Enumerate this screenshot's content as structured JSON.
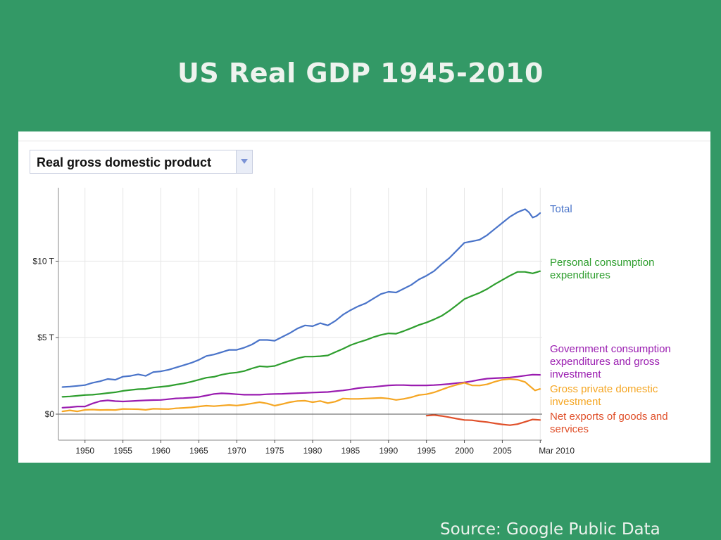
{
  "title": "US Real GDP 1945-2010",
  "source": "Source: Google Public Data",
  "metric_selector": {
    "label": "Real gross domestic product",
    "icon": "chevron-down-icon"
  },
  "chart_data": {
    "type": "line",
    "x_unit": "year",
    "xlim": [
      1946.5,
      2010.25
    ],
    "ylim": [
      -1.7,
      14.8
    ],
    "x_ticks": [
      {
        "value": 1950,
        "label": "1950"
      },
      {
        "value": 1955,
        "label": "1955"
      },
      {
        "value": 1960,
        "label": "1960"
      },
      {
        "value": 1965,
        "label": "1965"
      },
      {
        "value": 1970,
        "label": "1970"
      },
      {
        "value": 1975,
        "label": "1975"
      },
      {
        "value": 1980,
        "label": "1980"
      },
      {
        "value": 1985,
        "label": "1985"
      },
      {
        "value": 1990,
        "label": "1990"
      },
      {
        "value": 1995,
        "label": "1995"
      },
      {
        "value": 2000,
        "label": "2000"
      },
      {
        "value": 2005,
        "label": "2005"
      },
      {
        "value": 2010,
        "label": "Mar 2010"
      }
    ],
    "y_ticks": [
      {
        "value": 0,
        "label": "$0"
      },
      {
        "value": 5,
        "label": "$5 T"
      },
      {
        "value": 10,
        "label": "$10 T"
      }
    ],
    "grid": true,
    "legend": "right (end-of-line labels)",
    "series": [
      {
        "name": "Total",
        "label_lines": [
          "Total"
        ],
        "color": "#4a74c9",
        "points": [
          [
            1947,
            1.77
          ],
          [
            1948,
            1.8
          ],
          [
            1949,
            1.85
          ],
          [
            1950,
            1.9
          ],
          [
            1951,
            2.05
          ],
          [
            1952,
            2.15
          ],
          [
            1953,
            2.3
          ],
          [
            1954,
            2.25
          ],
          [
            1955,
            2.45
          ],
          [
            1956,
            2.5
          ],
          [
            1957,
            2.6
          ],
          [
            1958,
            2.5
          ],
          [
            1959,
            2.75
          ],
          [
            1960,
            2.8
          ],
          [
            1961,
            2.9
          ],
          [
            1962,
            3.05
          ],
          [
            1963,
            3.2
          ],
          [
            1964,
            3.35
          ],
          [
            1965,
            3.55
          ],
          [
            1966,
            3.8
          ],
          [
            1967,
            3.9
          ],
          [
            1968,
            4.05
          ],
          [
            1969,
            4.2
          ],
          [
            1970,
            4.2
          ],
          [
            1971,
            4.35
          ],
          [
            1972,
            4.55
          ],
          [
            1973,
            4.85
          ],
          [
            1974,
            4.85
          ],
          [
            1975,
            4.8
          ],
          [
            1976,
            5.05
          ],
          [
            1977,
            5.3
          ],
          [
            1978,
            5.6
          ],
          [
            1979,
            5.8
          ],
          [
            1980,
            5.75
          ],
          [
            1981,
            5.95
          ],
          [
            1982,
            5.8
          ],
          [
            1983,
            6.1
          ],
          [
            1984,
            6.5
          ],
          [
            1985,
            6.8
          ],
          [
            1986,
            7.05
          ],
          [
            1987,
            7.25
          ],
          [
            1988,
            7.55
          ],
          [
            1989,
            7.85
          ],
          [
            1990,
            8.0
          ],
          [
            1991,
            7.95
          ],
          [
            1992,
            8.2
          ],
          [
            1993,
            8.45
          ],
          [
            1994,
            8.8
          ],
          [
            1995,
            9.05
          ],
          [
            1996,
            9.35
          ],
          [
            1997,
            9.8
          ],
          [
            1998,
            10.2
          ],
          [
            1999,
            10.7
          ],
          [
            2000,
            11.2
          ],
          [
            2001,
            11.3
          ],
          [
            2002,
            11.4
          ],
          [
            2003,
            11.7
          ],
          [
            2004,
            12.1
          ],
          [
            2005,
            12.5
          ],
          [
            2006,
            12.9
          ],
          [
            2007,
            13.2
          ],
          [
            2008,
            13.4
          ],
          [
            2008.5,
            13.2
          ],
          [
            2009,
            12.85
          ],
          [
            2009.5,
            12.95
          ],
          [
            2010,
            13.15
          ]
        ]
      },
      {
        "name": "Personal consumption expenditures",
        "label_lines": [
          "Personal consumption",
          "expenditures"
        ],
        "color": "#2e9e2e",
        "points": [
          [
            1947,
            1.13
          ],
          [
            1948,
            1.16
          ],
          [
            1949,
            1.2
          ],
          [
            1950,
            1.25
          ],
          [
            1951,
            1.27
          ],
          [
            1952,
            1.32
          ],
          [
            1953,
            1.38
          ],
          [
            1954,
            1.43
          ],
          [
            1955,
            1.52
          ],
          [
            1956,
            1.58
          ],
          [
            1957,
            1.63
          ],
          [
            1958,
            1.65
          ],
          [
            1959,
            1.74
          ],
          [
            1960,
            1.79
          ],
          [
            1961,
            1.84
          ],
          [
            1962,
            1.93
          ],
          [
            1963,
            2.01
          ],
          [
            1964,
            2.12
          ],
          [
            1965,
            2.25
          ],
          [
            1966,
            2.38
          ],
          [
            1967,
            2.44
          ],
          [
            1968,
            2.58
          ],
          [
            1969,
            2.67
          ],
          [
            1970,
            2.72
          ],
          [
            1971,
            2.82
          ],
          [
            1972,
            2.99
          ],
          [
            1973,
            3.13
          ],
          [
            1974,
            3.1
          ],
          [
            1975,
            3.15
          ],
          [
            1976,
            3.33
          ],
          [
            1977,
            3.49
          ],
          [
            1978,
            3.65
          ],
          [
            1979,
            3.76
          ],
          [
            1980,
            3.76
          ],
          [
            1981,
            3.79
          ],
          [
            1982,
            3.84
          ],
          [
            1983,
            4.06
          ],
          [
            1984,
            4.27
          ],
          [
            1985,
            4.51
          ],
          [
            1986,
            4.69
          ],
          [
            1987,
            4.84
          ],
          [
            1988,
            5.03
          ],
          [
            1989,
            5.18
          ],
          [
            1990,
            5.28
          ],
          [
            1991,
            5.26
          ],
          [
            1992,
            5.43
          ],
          [
            1993,
            5.62
          ],
          [
            1994,
            5.83
          ],
          [
            1995,
            5.99
          ],
          [
            1996,
            6.19
          ],
          [
            1997,
            6.42
          ],
          [
            1998,
            6.75
          ],
          [
            1999,
            7.13
          ],
          [
            2000,
            7.52
          ],
          [
            2001,
            7.73
          ],
          [
            2002,
            7.93
          ],
          [
            2003,
            8.18
          ],
          [
            2004,
            8.49
          ],
          [
            2005,
            8.77
          ],
          [
            2006,
            9.05
          ],
          [
            2007,
            9.3
          ],
          [
            2008,
            9.3
          ],
          [
            2009,
            9.2
          ],
          [
            2010,
            9.35
          ]
        ]
      },
      {
        "name": "Government consumption expenditures and gross investment",
        "label_lines": [
          "Government consumption",
          "expenditures and gross",
          "investment"
        ],
        "color": "#9a1cb0",
        "points": [
          [
            1947,
            0.42
          ],
          [
            1948,
            0.45
          ],
          [
            1949,
            0.5
          ],
          [
            1950,
            0.5
          ],
          [
            1951,
            0.7
          ],
          [
            1952,
            0.85
          ],
          [
            1953,
            0.9
          ],
          [
            1954,
            0.85
          ],
          [
            1955,
            0.83
          ],
          [
            1956,
            0.85
          ],
          [
            1957,
            0.88
          ],
          [
            1958,
            0.9
          ],
          [
            1959,
            0.92
          ],
          [
            1960,
            0.93
          ],
          [
            1961,
            0.98
          ],
          [
            1962,
            1.03
          ],
          [
            1963,
            1.05
          ],
          [
            1964,
            1.08
          ],
          [
            1965,
            1.12
          ],
          [
            1966,
            1.22
          ],
          [
            1967,
            1.32
          ],
          [
            1968,
            1.36
          ],
          [
            1969,
            1.34
          ],
          [
            1970,
            1.3
          ],
          [
            1971,
            1.27
          ],
          [
            1972,
            1.27
          ],
          [
            1973,
            1.27
          ],
          [
            1974,
            1.3
          ],
          [
            1975,
            1.32
          ],
          [
            1976,
            1.33
          ],
          [
            1977,
            1.35
          ],
          [
            1978,
            1.37
          ],
          [
            1979,
            1.39
          ],
          [
            1980,
            1.41
          ],
          [
            1981,
            1.43
          ],
          [
            1982,
            1.45
          ],
          [
            1983,
            1.5
          ],
          [
            1984,
            1.55
          ],
          [
            1985,
            1.62
          ],
          [
            1986,
            1.7
          ],
          [
            1987,
            1.75
          ],
          [
            1988,
            1.78
          ],
          [
            1989,
            1.83
          ],
          [
            1990,
            1.88
          ],
          [
            1991,
            1.9
          ],
          [
            1992,
            1.9
          ],
          [
            1993,
            1.88
          ],
          [
            1994,
            1.88
          ],
          [
            1995,
            1.88
          ],
          [
            1996,
            1.9
          ],
          [
            1997,
            1.93
          ],
          [
            1998,
            1.97
          ],
          [
            1999,
            2.03
          ],
          [
            2000,
            2.08
          ],
          [
            2001,
            2.15
          ],
          [
            2002,
            2.25
          ],
          [
            2003,
            2.32
          ],
          [
            2004,
            2.35
          ],
          [
            2005,
            2.37
          ],
          [
            2006,
            2.4
          ],
          [
            2007,
            2.45
          ],
          [
            2008,
            2.52
          ],
          [
            2009,
            2.58
          ],
          [
            2010,
            2.57
          ]
        ]
      },
      {
        "name": "Gross private domestic investment",
        "label_lines": [
          "Gross private domestic",
          "investment"
        ],
        "color": "#f5a623",
        "points": [
          [
            1947,
            0.18
          ],
          [
            1948,
            0.25
          ],
          [
            1949,
            0.18
          ],
          [
            1950,
            0.28
          ],
          [
            1951,
            0.3
          ],
          [
            1952,
            0.27
          ],
          [
            1953,
            0.28
          ],
          [
            1954,
            0.27
          ],
          [
            1955,
            0.34
          ],
          [
            1956,
            0.33
          ],
          [
            1957,
            0.32
          ],
          [
            1958,
            0.28
          ],
          [
            1959,
            0.35
          ],
          [
            1960,
            0.34
          ],
          [
            1961,
            0.33
          ],
          [
            1962,
            0.38
          ],
          [
            1963,
            0.41
          ],
          [
            1964,
            0.44
          ],
          [
            1965,
            0.5
          ],
          [
            1966,
            0.55
          ],
          [
            1967,
            0.52
          ],
          [
            1968,
            0.56
          ],
          [
            1969,
            0.6
          ],
          [
            1970,
            0.56
          ],
          [
            1971,
            0.62
          ],
          [
            1972,
            0.7
          ],
          [
            1973,
            0.78
          ],
          [
            1974,
            0.7
          ],
          [
            1975,
            0.55
          ],
          [
            1976,
            0.66
          ],
          [
            1977,
            0.78
          ],
          [
            1978,
            0.86
          ],
          [
            1979,
            0.88
          ],
          [
            1980,
            0.78
          ],
          [
            1981,
            0.86
          ],
          [
            1982,
            0.72
          ],
          [
            1983,
            0.82
          ],
          [
            1984,
            1.02
          ],
          [
            1985,
            1.0
          ],
          [
            1986,
            1.0
          ],
          [
            1987,
            1.02
          ],
          [
            1988,
            1.04
          ],
          [
            1989,
            1.06
          ],
          [
            1990,
            1.02
          ],
          [
            1991,
            0.93
          ],
          [
            1992,
            1.0
          ],
          [
            1993,
            1.1
          ],
          [
            1994,
            1.25
          ],
          [
            1995,
            1.3
          ],
          [
            1996,
            1.42
          ],
          [
            1997,
            1.6
          ],
          [
            1998,
            1.78
          ],
          [
            1999,
            1.92
          ],
          [
            2000,
            2.05
          ],
          [
            2001,
            1.88
          ],
          [
            2002,
            1.87
          ],
          [
            2003,
            1.95
          ],
          [
            2004,
            2.12
          ],
          [
            2005,
            2.25
          ],
          [
            2006,
            2.3
          ],
          [
            2007,
            2.25
          ],
          [
            2008,
            2.1
          ],
          [
            2008.7,
            1.8
          ],
          [
            2009.3,
            1.55
          ],
          [
            2010,
            1.65
          ]
        ]
      },
      {
        "name": "Net exports of goods and services",
        "label_lines": [
          "Net exports of goods and",
          "services"
        ],
        "color": "#e0502a",
        "points": [
          [
            1995,
            -0.1
          ],
          [
            1996,
            -0.06
          ],
          [
            1997,
            -0.12
          ],
          [
            1998,
            -0.2
          ],
          [
            1999,
            -0.3
          ],
          [
            2000,
            -0.38
          ],
          [
            2001,
            -0.4
          ],
          [
            2002,
            -0.47
          ],
          [
            2003,
            -0.52
          ],
          [
            2004,
            -0.6
          ],
          [
            2005,
            -0.67
          ],
          [
            2006,
            -0.72
          ],
          [
            2007,
            -0.65
          ],
          [
            2008,
            -0.5
          ],
          [
            2009,
            -0.35
          ],
          [
            2010,
            -0.38
          ]
        ]
      }
    ]
  }
}
